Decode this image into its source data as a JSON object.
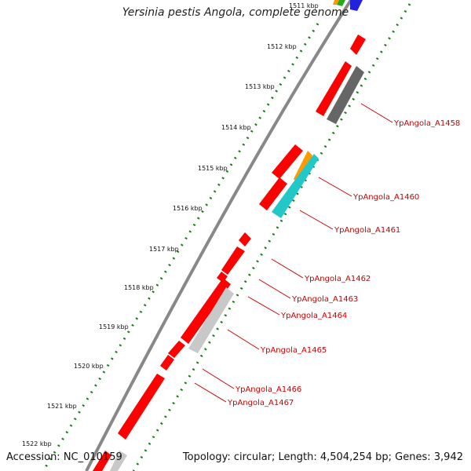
{
  "title": "Yersinia pestis Angola, complete genome",
  "accession": "Accession: NC_010159",
  "summary": "Topology: circular; Length: 4,504,254 bp; Genes: 3,942",
  "kbp_ticks": [
    "1511 kbp",
    "1512 kbp",
    "1513 kbp",
    "1514 kbp",
    "1515 kbp",
    "1516 kbp",
    "1517 kbp",
    "1518 kbp",
    "1519 kbp",
    "1520 kbp",
    "1521 kbp",
    "1522 kbp"
  ],
  "gene_labels": [
    "YpAngola_A1458",
    "YpAngola_A1460",
    "YpAngola_A1461",
    "YpAngola_A1462",
    "YpAngola_A1463",
    "YpAngola_A1464",
    "YpAngola_A1465",
    "YpAngola_A1466",
    "YpAngola_A1467"
  ],
  "colors": {
    "forward_cds": "#ff0000",
    "reverse_cds": "#ff0000",
    "pseudo": "#666666",
    "hypothetical": "#c8c8c8",
    "cyan_feature": "#22c8c8",
    "orange_feature": "#ff9900",
    "backbone": "#888888",
    "tick_dots": "#1a7a1a",
    "label": "#cc0000"
  }
}
